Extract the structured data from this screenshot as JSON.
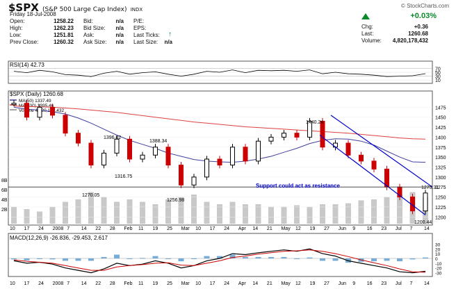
{
  "header": {
    "symbol": "$SPX",
    "name": "(S&P 500 Large Cap Index)",
    "exchange": "INDX",
    "watermark": "© StockCharts.com",
    "date": "Friday 18-Jul-2008",
    "open_label": "Open:",
    "open": "1258.22",
    "high_label": "High:",
    "high": "1262.23",
    "low_label": "Low:",
    "low": "1251.81",
    "prev_label": "Prev Close:",
    "prev": "1260.32",
    "bid_label": "Bid:",
    "bid": "n/a",
    "bidsize_label": "Bid Size:",
    "bidsize": "n/a",
    "ask_label": "Ask:",
    "ask": "n/a",
    "asksize_label": "Ask Size:",
    "asksize": "n/a",
    "pe_label": "P/E:",
    "eps_label": "EPS:",
    "lastticks_label": "Last Ticks:",
    "lastsize_label": "Last Size:",
    "lastsize": "n/a",
    "chg_pct": "+0.03%",
    "chg_label": "Chg:",
    "chg": "+0.36",
    "last_label": "Last:",
    "last": "1260.68",
    "volume_label": "Volume:",
    "volume": "4,820,178,432"
  },
  "colors": {
    "up": "#000000",
    "down": "#cc0000",
    "ma50": "#4040a0",
    "ma200": "#dd4040",
    "channel": "#0000cc",
    "volume": "#888888",
    "macd": "#000000",
    "signal": "#cc0000",
    "hist": "#5599cc",
    "green": "#0a8a2a"
  },
  "rsi_panel": {
    "label": "RSI(14) 42.73",
    "ticks": [
      "70",
      "50",
      "30",
      "10"
    ]
  },
  "price_panel": {
    "title": "$SPX (Daily) 1260.68",
    "legend": [
      "MA(50) 1337.49",
      "MA(200) 1395.46",
      "Volume 4,820,178,432"
    ],
    "annotation": "Support could act as resistance",
    "price_labels": [
      "1440.24",
      "1396.02",
      "1388.34",
      "1316.75",
      "1270.05",
      "1256.98",
      "1200.44",
      "1275.31"
    ],
    "vol_ticks": [
      "8B",
      "6B",
      "4B",
      "2B"
    ],
    "price_ticks": [
      "1475",
      "1450",
      "1425",
      "1400",
      "1375",
      "1350",
      "1325",
      "1300",
      "1275",
      "1250",
      "1225",
      "1200"
    ]
  },
  "macd_panel": {
    "label": "MACD(12,26,9) -26.836, -29.453, 2.617",
    "ticks": [
      "30",
      "20",
      "10",
      "0",
      "-10",
      "-20",
      "-30"
    ]
  },
  "x_axis": [
    "10",
    "17",
    "24",
    "2008",
    "7",
    "14",
    "22",
    "28",
    "Feb",
    "11",
    "19",
    "25",
    "Mar",
    "10",
    "17",
    "24",
    "Apr",
    "14",
    "21",
    "May",
    "12",
    "19",
    "27",
    "Jun",
    "9",
    "16",
    "23",
    "Jul",
    "7",
    "14"
  ],
  "chart_data": {
    "type": "line",
    "title": "$SPX (Daily) 1260.68",
    "ylim": [
      1190,
      1500
    ],
    "x": [
      "Dec 10",
      "Dec 17",
      "Dec 24",
      "Jan 2",
      "Jan 7",
      "Jan 14",
      "Jan 22",
      "Jan 28",
      "Feb 4",
      "Feb 11",
      "Feb 19",
      "Feb 25",
      "Mar 3",
      "Mar 10",
      "Mar 17",
      "Mar 24",
      "Mar 31",
      "Apr 7",
      "Apr 14",
      "Apr 21",
      "Apr 28",
      "May 5",
      "May 12",
      "May 19",
      "May 27",
      "Jun 2",
      "Jun 9",
      "Jun 16",
      "Jun 23",
      "Jun 30",
      "Jul 7",
      "Jul 14",
      "Jul 18"
    ],
    "series": [
      {
        "name": "$SPX",
        "values": [
          1485,
          1450,
          1475,
          1455,
          1410,
          1385,
          1330,
          1360,
          1395,
          1345,
          1355,
          1375,
          1330,
          1280,
          1300,
          1345,
          1330,
          1375,
          1340,
          1390,
          1400,
          1410,
          1400,
          1440,
          1375,
          1385,
          1355,
          1340,
          1320,
          1275,
          1250,
          1215,
          1260
        ]
      },
      {
        "name": "MA(50)",
        "values": [
          1475,
          1470,
          1468,
          1464,
          1458,
          1448,
          1435,
          1420,
          1405,
          1392,
          1382,
          1372,
          1360,
          1352,
          1344,
          1340,
          1338,
          1337,
          1340,
          1345,
          1352,
          1362,
          1372,
          1384,
          1392,
          1396,
          1395,
          1390,
          1380,
          1365,
          1350,
          1338,
          1337
        ]
      },
      {
        "name": "MA(200)",
        "values": [
          1478,
          1477,
          1476,
          1475,
          1473,
          1471,
          1468,
          1465,
          1462,
          1458,
          1454,
          1450,
          1446,
          1442,
          1438,
          1435,
          1432,
          1429,
          1426,
          1424,
          1422,
          1420,
          1418,
          1416,
          1414,
          1412,
          1410,
          1407,
          1404,
          1401,
          1398,
          1396,
          1395
        ]
      }
    ],
    "volume_B": [
      3.5,
      3.0,
      2.5,
      3.5,
      4.5,
      5.0,
      6.5,
      5.5,
      4.5,
      5.0,
      4.5,
      4.0,
      5.0,
      5.5,
      6.0,
      4.5,
      4.0,
      4.5,
      4.0,
      4.0,
      3.5,
      3.5,
      3.8,
      3.5,
      4.0,
      4.0,
      4.2,
      4.8,
      5.0,
      5.5,
      6.0,
      6.5,
      5.5
    ],
    "rsi": [
      55,
      48,
      60,
      52,
      38,
      35,
      28,
      45,
      55,
      40,
      48,
      52,
      40,
      30,
      40,
      55,
      50,
      62,
      48,
      60,
      58,
      60,
      55,
      62,
      42,
      50,
      42,
      40,
      35,
      28,
      30,
      32,
      43
    ],
    "macd": [
      -5,
      -10,
      -8,
      -12,
      -20,
      -25,
      -30,
      -22,
      -10,
      -15,
      -12,
      -5,
      -10,
      -20,
      -15,
      -5,
      0,
      10,
      8,
      12,
      15,
      18,
      15,
      20,
      10,
      5,
      -5,
      -10,
      -15,
      -20,
      -28,
      -30,
      -27
    ],
    "signal": [
      -3,
      -6,
      -8,
      -10,
      -15,
      -20,
      -25,
      -25,
      -18,
      -15,
      -13,
      -10,
      -9,
      -14,
      -15,
      -10,
      -5,
      2,
      5,
      9,
      12,
      15,
      16,
      18,
      15,
      10,
      4,
      -3,
      -9,
      -15,
      -22,
      -28,
      -29
    ]
  }
}
